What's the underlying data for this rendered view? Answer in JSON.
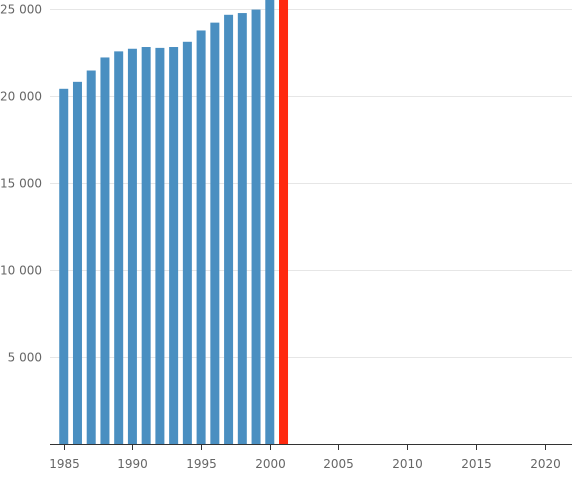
{
  "chart_data": {
    "type": "bar",
    "title": "",
    "xlabel": "",
    "ylabel": "",
    "xlim": [
      1984,
      2022
    ],
    "ylim": [
      0,
      25500
    ],
    "grid": true,
    "x_ticks": [
      1985,
      1990,
      1995,
      2000,
      2005,
      2010,
      2015,
      2020
    ],
    "y_ticks": [
      5000,
      10000,
      15000,
      20000,
      25000
    ],
    "y_tick_labels": [
      "5 000",
      "10 000",
      "15 000",
      "20 000",
      "25 000"
    ],
    "colors": {
      "default": "#4a8fc1",
      "highlight": "#ff2a0f"
    },
    "highlight_x": 2001,
    "x": [
      1985,
      1986,
      1987,
      1988,
      1989,
      1990,
      1991,
      1992,
      1993,
      1994,
      1995,
      1996,
      1997,
      1998,
      1999,
      2000,
      2001
    ],
    "values": [
      20400,
      20800,
      21450,
      22200,
      22550,
      22700,
      22800,
      22750,
      22800,
      23100,
      23750,
      24200,
      24650,
      24750,
      24950,
      25800,
      26100
    ]
  }
}
